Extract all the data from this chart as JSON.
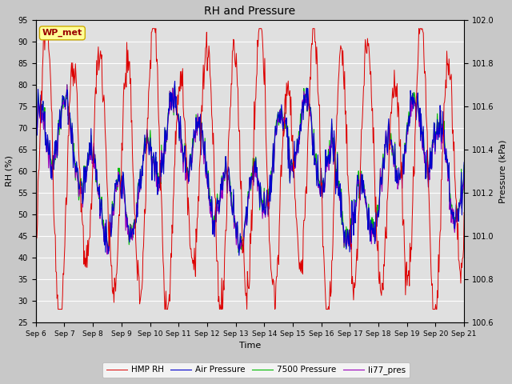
{
  "title": "RH and Pressure",
  "xlabel": "Time",
  "ylabel_left": "RH (%)",
  "ylabel_right": "Pressure (kPa)",
  "ylim_left": [
    25,
    95
  ],
  "ylim_right": [
    100.6,
    102.0
  ],
  "yticks_left": [
    25,
    30,
    35,
    40,
    45,
    50,
    55,
    60,
    65,
    70,
    75,
    80,
    85,
    90,
    95
  ],
  "yticks_right": [
    100.6,
    100.8,
    101.0,
    101.2,
    101.4,
    101.6,
    101.8,
    102.0
  ],
  "xtick_labels": [
    "Sep 6",
    "Sep 7",
    "Sep 8",
    "Sep 9",
    "Sep 10",
    "Sep 11",
    "Sep 12",
    "Sep 13",
    "Sep 14",
    "Sep 15",
    "Sep 16",
    "Sep 17",
    "Sep 18",
    "Sep 19",
    "Sep 20",
    "Sep 21"
  ],
  "annotation": "WP_met",
  "fig_bg_color": "#c8c8c8",
  "plot_bg_color": "#e0e0e0",
  "colors": {
    "HMP RH": "#dd0000",
    "Air Pressure": "#0000cc",
    "7500 Pressure": "#00bb00",
    "li77_pres": "#9900bb"
  },
  "legend_entries": [
    "HMP RH",
    "Air Pressure",
    "7500 Pressure",
    "li77_pres"
  ]
}
